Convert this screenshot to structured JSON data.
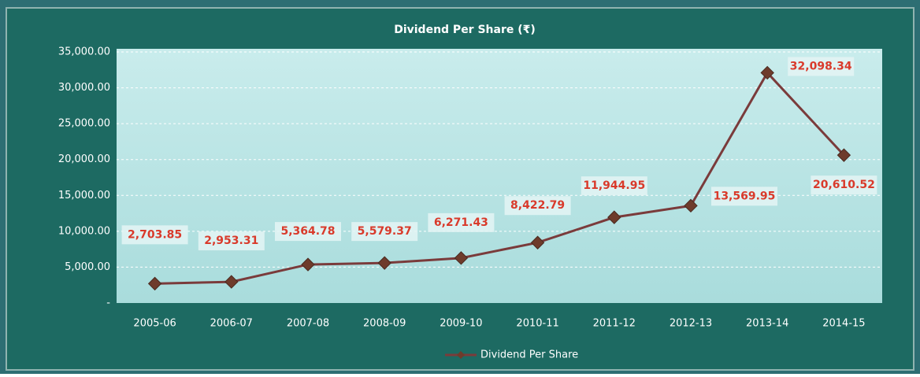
{
  "chart_data": {
    "type": "line",
    "title": "Dividend Per Share (₹)",
    "categories": [
      "2005-06",
      "2006-07",
      "2007-08",
      "2008-09",
      "2009-10",
      "2010-11",
      "2011-12",
      "2012-13",
      "2013-14",
      "2014-15"
    ],
    "series": [
      {
        "name": "Dividend Per Share",
        "color": "#7a3b3b",
        "values": [
          2703.85,
          2953.31,
          5364.78,
          5579.37,
          6271.43,
          8422.79,
          11944.95,
          13569.95,
          32098.34,
          20610.52
        ],
        "value_labels": [
          "2,703.85",
          "2,953.31",
          "5,364.78",
          "5,579.37",
          "6,271.43",
          "8,422.79",
          "11,944.95",
          "13,569.95",
          "32,098.34",
          "20,610.52"
        ]
      }
    ],
    "ylim": [
      0,
      35000
    ],
    "yticks": [
      {
        "value": 0,
        "label": "-"
      },
      {
        "value": 5000,
        "label": "5,000.00"
      },
      {
        "value": 10000,
        "label": "10,000.00"
      },
      {
        "value": 15000,
        "label": "15,000.00"
      },
      {
        "value": 20000,
        "label": "20,000.00"
      },
      {
        "value": 25000,
        "label": "25,000.00"
      },
      {
        "value": 30000,
        "label": "30,000.00"
      },
      {
        "value": 35000,
        "label": "35,000.00"
      }
    ],
    "grid": true,
    "legend": "bottom"
  }
}
